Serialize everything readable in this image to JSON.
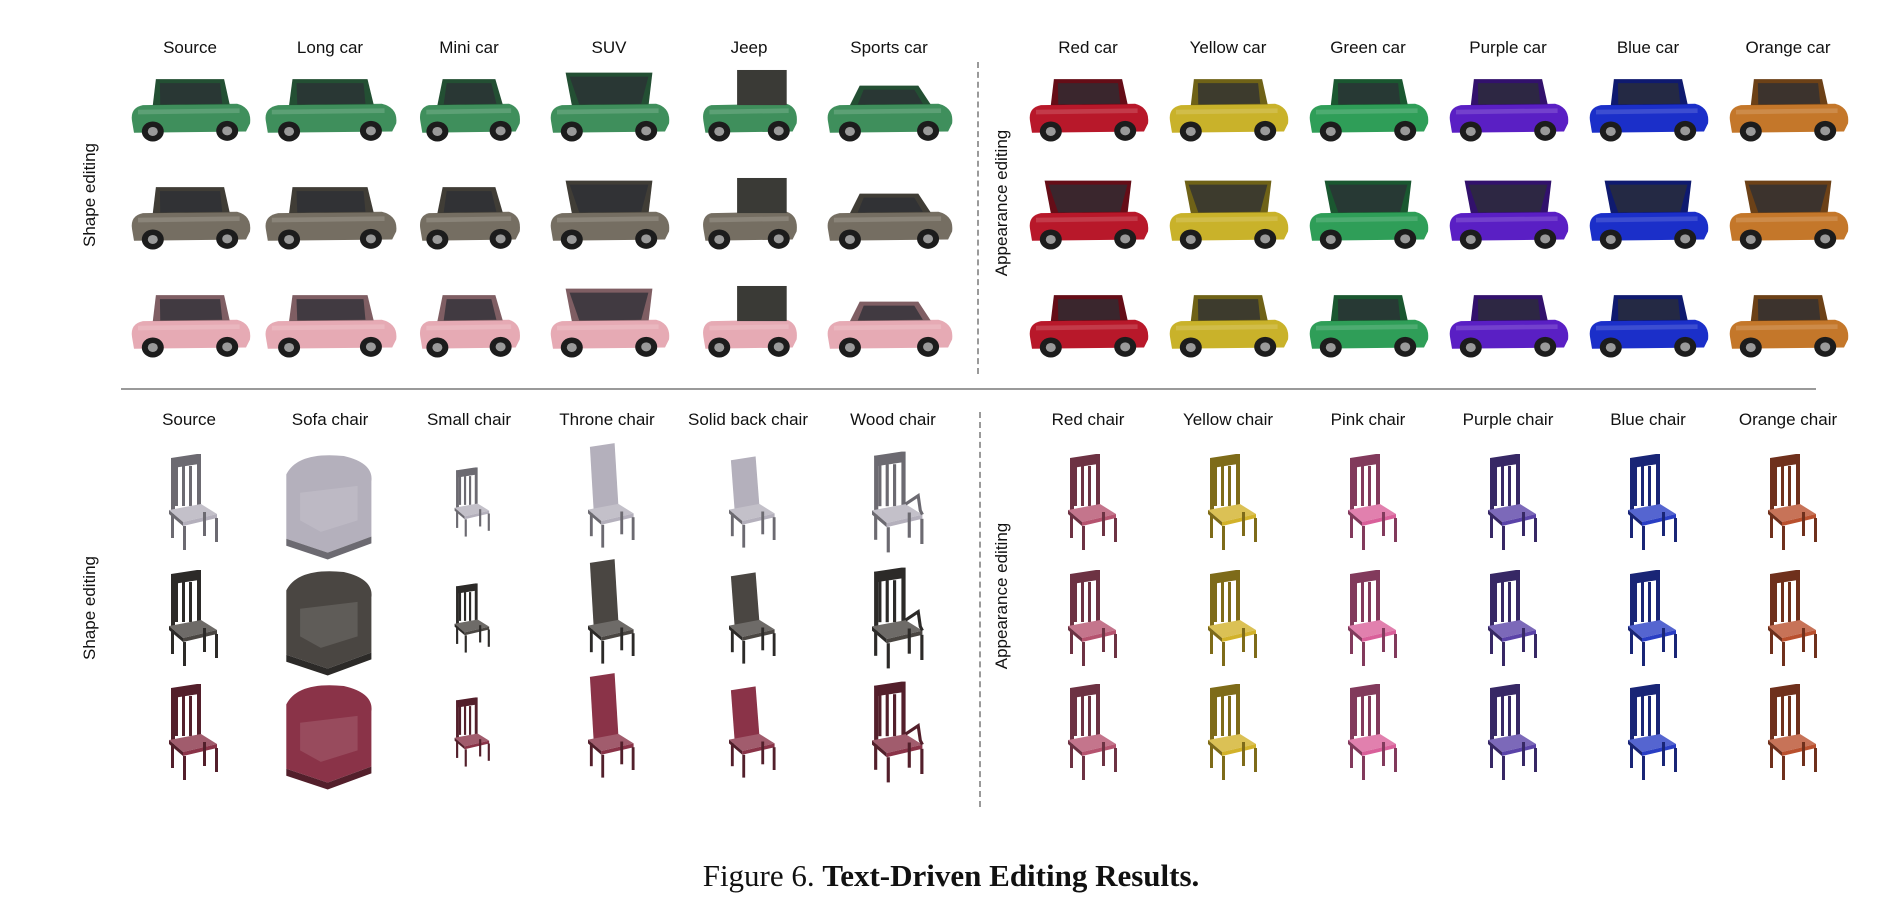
{
  "figure": {
    "caption_label": "Figure 6.",
    "caption_title": "Text-Driven Editing Results."
  },
  "cars": {
    "shape_side_label": "Shape editing",
    "appearance_side_label": "Appearance editing",
    "shape_columns": [
      "Source",
      "Long car",
      "Mini car",
      "SUV",
      "Jeep",
      "Sports car"
    ],
    "appearance_columns": [
      "Red car",
      "Yellow car",
      "Green car",
      "Purple car",
      "Blue car",
      "Orange car"
    ],
    "source_row_colors": [
      "#3f8f5c",
      "#756e62",
      "#e6aab4"
    ],
    "appearance_colors": [
      "#b8182a",
      "#c9b22a",
      "#2f9e58",
      "#5a1fc4",
      "#1b2fc9",
      "#c4772a"
    ]
  },
  "chairs": {
    "shape_side_label": "Shape editing",
    "appearance_side_label": "Appearance editing",
    "shape_columns": [
      "Source",
      "Sofa chair",
      "Small chair",
      "Throne chair",
      "Solid back chair",
      "Wood chair"
    ],
    "appearance_columns": [
      "Red chair",
      "Yellow chair",
      "Pink chair",
      "Purple chair",
      "Blue chair",
      "Orange chair"
    ],
    "source_row_colors": [
      "#b4b0bc",
      "#4a4642",
      "#8a3348"
    ],
    "appearance_colors": [
      "#b5536f",
      "#d2b22a",
      "#d9609a",
      "#5b43a8",
      "#2a3ec4",
      "#b9502e"
    ]
  }
}
